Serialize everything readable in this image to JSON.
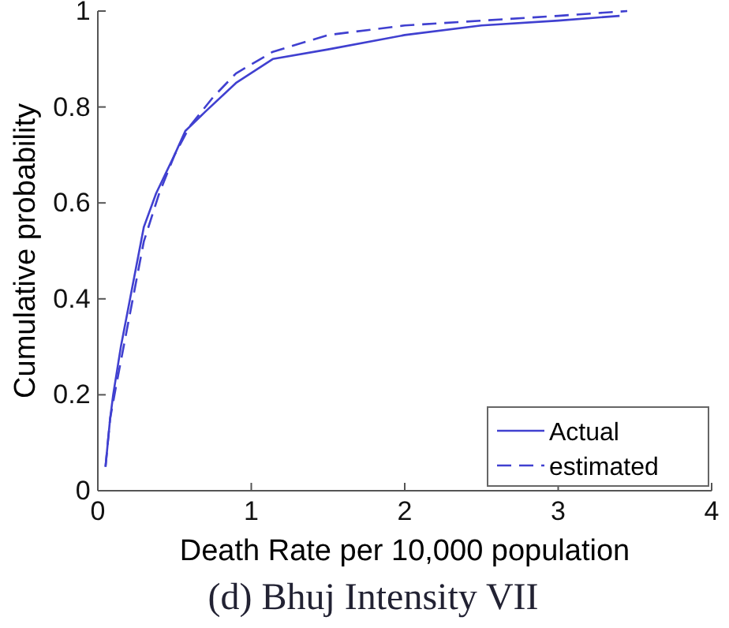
{
  "chart_data": {
    "type": "line",
    "title": "(d) Bhuj Intensity VII",
    "xlabel": "Death Rate per 10,000 population",
    "ylabel": "Cumulative probability",
    "xlim": [
      0,
      4
    ],
    "ylim": [
      0,
      1
    ],
    "xticks": [
      0,
      1,
      2,
      3,
      4
    ],
    "yticks": [
      0,
      0.2,
      0.4,
      0.6,
      0.8,
      1
    ],
    "legend": "bottom right",
    "series": [
      {
        "name": "Actual",
        "color": "#4040d0",
        "line_style": "solid",
        "x": [
          0.05,
          0.08,
          0.1,
          0.15,
          0.21,
          0.3,
          0.38,
          0.5,
          0.57,
          0.7,
          0.9,
          1.14,
          1.5,
          2.0,
          2.5,
          3.0,
          3.4
        ],
        "values": [
          0.05,
          0.15,
          0.2,
          0.3,
          0.4,
          0.55,
          0.62,
          0.7,
          0.75,
          0.79,
          0.85,
          0.9,
          0.92,
          0.95,
          0.97,
          0.98,
          0.99
        ]
      },
      {
        "name": "estimated",
        "color": "#4040d0",
        "line_style": "dashed",
        "x": [
          0.05,
          0.08,
          0.12,
          0.18,
          0.24,
          0.3,
          0.4,
          0.5,
          0.6,
          0.75,
          0.9,
          1.14,
          1.5,
          2.0,
          2.5,
          3.0,
          3.45
        ],
        "values": [
          0.05,
          0.15,
          0.22,
          0.32,
          0.42,
          0.52,
          0.62,
          0.7,
          0.76,
          0.82,
          0.87,
          0.915,
          0.95,
          0.97,
          0.98,
          0.99,
          1.0
        ]
      }
    ]
  }
}
